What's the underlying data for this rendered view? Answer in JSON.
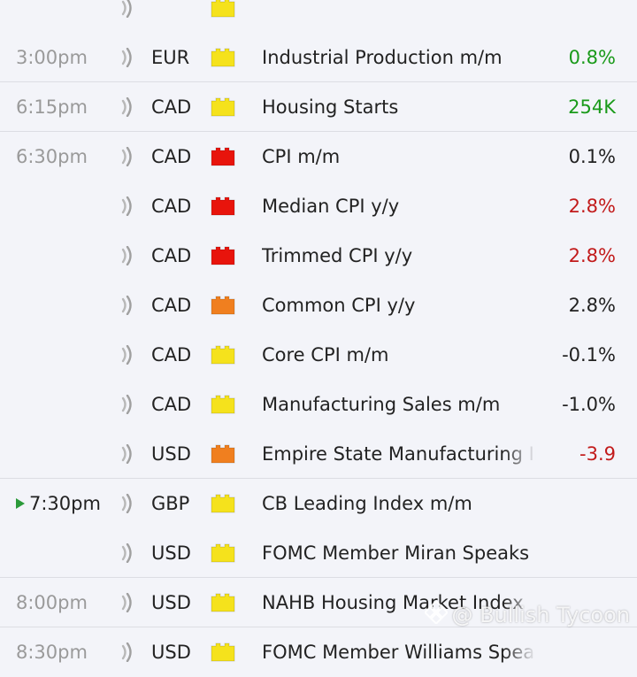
{
  "colors": {
    "positive": "#1a9a1a",
    "negative": "#c21b1b",
    "neutral": "#222222",
    "impact_high": "#e8140c",
    "impact_medium": "#f07f1f",
    "impact_low": "#f5e21c"
  },
  "events": [
    {
      "time": "",
      "currency": "",
      "impact": "low",
      "event": "",
      "actual": "",
      "actual_tone": "neutral",
      "partial": true
    },
    {
      "time": "3:00pm",
      "currency": "EUR",
      "impact": "low",
      "event": "Industrial Production m/m",
      "actual": "0.8%",
      "actual_tone": "positive",
      "sep": true
    },
    {
      "time": "6:15pm",
      "currency": "CAD",
      "impact": "low",
      "event": "Housing Starts",
      "actual": "254K",
      "actual_tone": "positive",
      "sep": true
    },
    {
      "time": "6:30pm",
      "currency": "CAD",
      "impact": "high",
      "event": "CPI m/m",
      "actual": "0.1%",
      "actual_tone": "neutral"
    },
    {
      "time": "",
      "currency": "CAD",
      "impact": "high",
      "event": "Median CPI y/y",
      "actual": "2.8%",
      "actual_tone": "negative"
    },
    {
      "time": "",
      "currency": "CAD",
      "impact": "high",
      "event": "Trimmed CPI y/y",
      "actual": "2.8%",
      "actual_tone": "negative"
    },
    {
      "time": "",
      "currency": "CAD",
      "impact": "medium",
      "event": "Common CPI y/y",
      "actual": "2.8%",
      "actual_tone": "neutral"
    },
    {
      "time": "",
      "currency": "CAD",
      "impact": "low",
      "event": "Core CPI m/m",
      "actual": "-0.1%",
      "actual_tone": "neutral"
    },
    {
      "time": "",
      "currency": "CAD",
      "impact": "low",
      "event": "Manufacturing Sales m/m",
      "actual": "-1.0%",
      "actual_tone": "neutral"
    },
    {
      "time": "",
      "currency": "USD",
      "impact": "medium",
      "event": "Empire State Manufacturing Index",
      "actual": "-3.9",
      "actual_tone": "negative",
      "sep": true
    },
    {
      "time": "7:30pm",
      "currency": "GBP",
      "impact": "low",
      "event": "CB Leading Index m/m",
      "actual": "",
      "actual_tone": "neutral",
      "current": true
    },
    {
      "time": "",
      "currency": "USD",
      "impact": "low",
      "event": "FOMC Member Miran Speaks",
      "actual": "",
      "actual_tone": "neutral",
      "sep": true
    },
    {
      "time": "8:00pm",
      "currency": "USD",
      "impact": "low",
      "event": "NAHB Housing Market Index",
      "actual": "",
      "actual_tone": "neutral",
      "sep": true
    },
    {
      "time": "8:30pm",
      "currency": "USD",
      "impact": "low",
      "event": "FOMC Member Williams Speaks",
      "actual": "",
      "actual_tone": "neutral"
    }
  ],
  "watermark": {
    "text": "@ Bullish Tycoon"
  }
}
